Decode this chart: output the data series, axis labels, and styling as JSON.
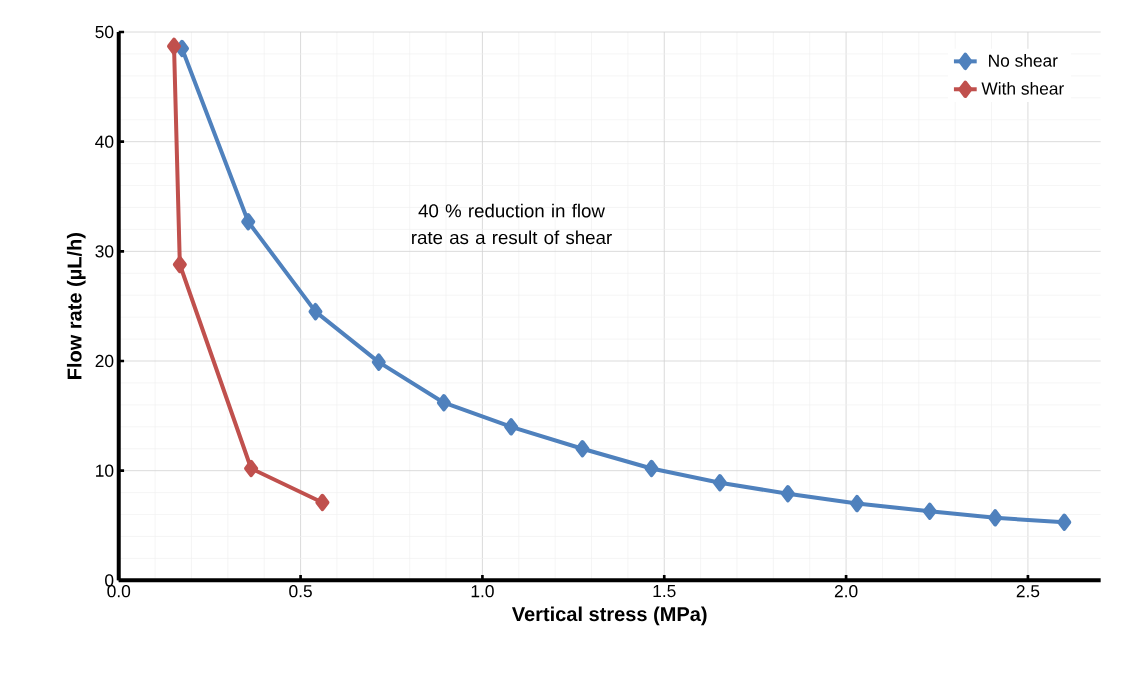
{
  "chart_data": {
    "type": "line",
    "xlabel": "Vertical stress (MPa)",
    "ylabel": "Flow rate (µL/h)",
    "xlim": [
      0,
      2.7
    ],
    "ylim": [
      0,
      50
    ],
    "xticks": [
      {
        "value": 0,
        "label": "0.0"
      },
      {
        "value": 0.5,
        "label": "0.5"
      },
      {
        "value": 1,
        "label": "1.0"
      },
      {
        "value": 1.5,
        "label": "1.5"
      },
      {
        "value": 2,
        "label": "2.0"
      },
      {
        "value": 2.5,
        "label": "2.5"
      }
    ],
    "yticks": [
      0,
      10,
      20,
      30,
      40,
      50
    ],
    "grid": true,
    "legend": "top right",
    "marker": "diamond",
    "line_style": "solid",
    "annotations": [
      "40 % reduction in flow rate as a result of shear"
    ],
    "series": [
      {
        "name": "No shear",
        "color": "#4f81bd",
        "x": [
          0.174,
          0.356,
          0.541,
          0.715,
          0.894,
          1.079,
          1.275,
          1.465,
          1.653,
          1.84,
          2.03,
          2.23,
          2.41,
          2.6
        ],
        "values": [
          48.5,
          32.7,
          24.5,
          19.9,
          16.2,
          14.0,
          12.0,
          10.2,
          8.9,
          7.9,
          7.0,
          6.3,
          5.7,
          5.3
        ]
      },
      {
        "name": "With shear",
        "color": "#c0504d",
        "x": [
          0.152,
          0.168,
          0.364,
          0.56
        ],
        "values": [
          48.7,
          28.8,
          10.2,
          7.1
        ]
      }
    ]
  }
}
